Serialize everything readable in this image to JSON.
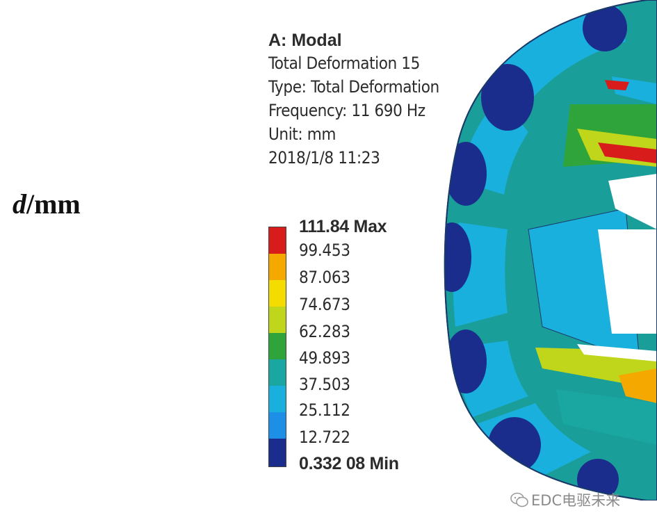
{
  "axis_label": {
    "italic": "d",
    "rest": "/mm"
  },
  "info": {
    "title": "A: Modal",
    "lines": [
      "Total Deformation 15",
      "Type: Total Deformation",
      "Frequency: 11 690 Hz",
      "Unit: mm",
      "2018/1/8 11:23"
    ]
  },
  "legend": {
    "max_label": "111.84 Max",
    "min_label": "0.332 08 Min",
    "ticks": [
      "99.453",
      "87.063",
      "74.673",
      "62.283",
      "49.893",
      "37.503",
      "25.112",
      "12.722"
    ],
    "colors": [
      "#d81c1c",
      "#f5a800",
      "#f5dc00",
      "#c0d61a",
      "#2ea43a",
      "#1aa7a2",
      "#1ab0de",
      "#1e8fe6",
      "#1b2d8c"
    ]
  },
  "watermark": {
    "text": "EDC电驱未来",
    "icon": "wechat-icon"
  }
}
